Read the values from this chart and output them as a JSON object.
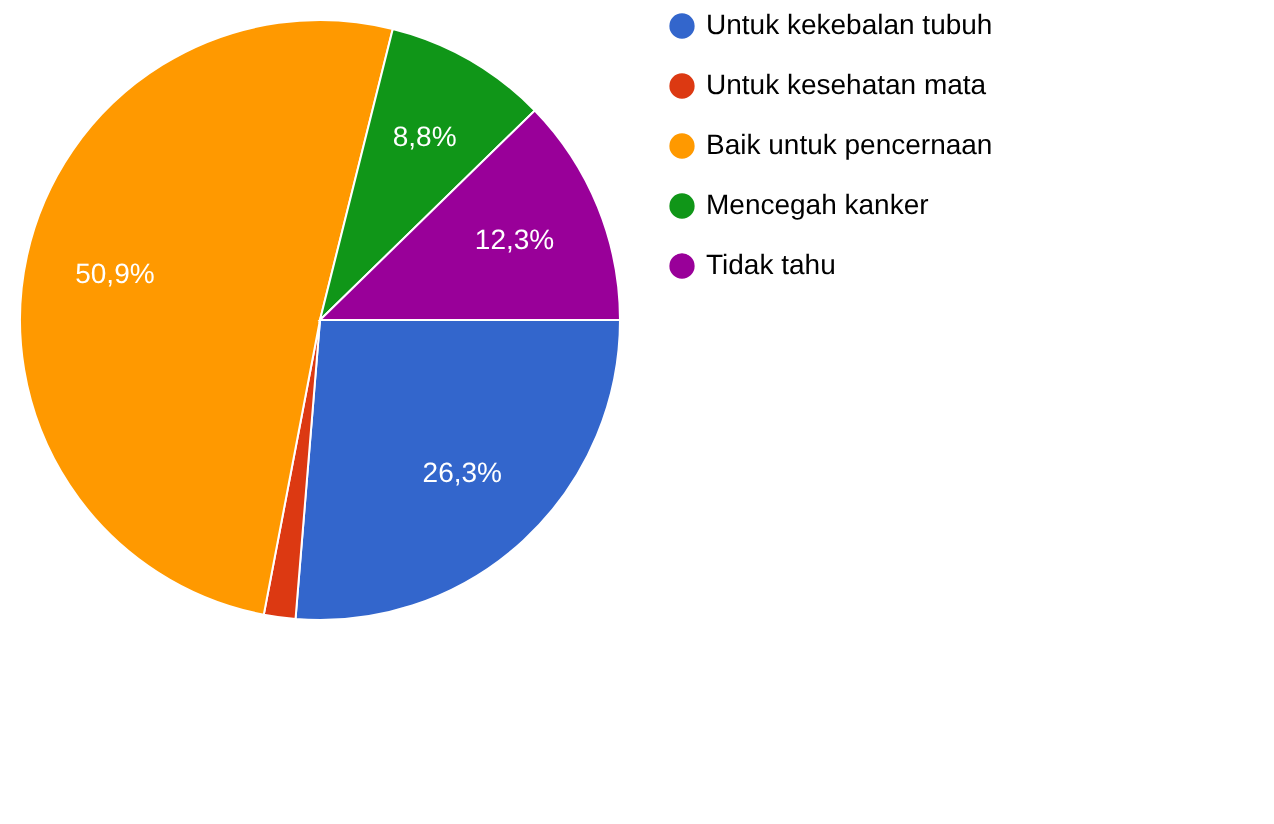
{
  "chart_data": {
    "type": "pie",
    "categories": [
      "Untuk kekebalan tubuh",
      "Untuk kesehatan mata",
      "Baik untuk pencernaan",
      "Mencegah kanker",
      "Tidak tahu"
    ],
    "values": [
      26.3,
      1.7,
      50.9,
      8.8,
      12.3
    ],
    "colors": [
      "#3366cc",
      "#dc3912",
      "#ff9900",
      "#109618",
      "#990099"
    ],
    "value_labels": [
      "26,3%",
      null,
      "50,9%",
      "8,8%",
      "12,3%"
    ],
    "legend": "right"
  }
}
